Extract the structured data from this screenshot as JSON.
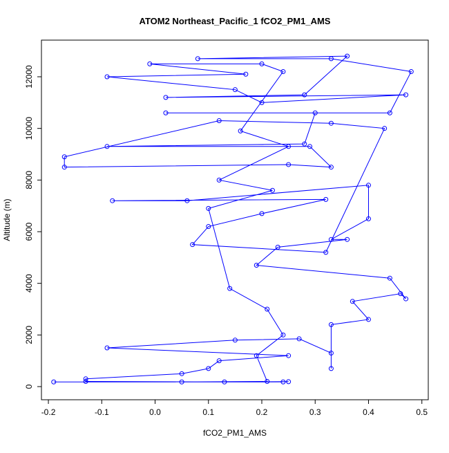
{
  "chart_data": {
    "type": "line",
    "title": "ATOM2 Northeast_Pacific_1 fCO2_PM1_AMS",
    "x_label": "fCO2_PM1_AMS",
    "y_label": "Altitude (m)",
    "series": [
      {
        "color": "#0000ff",
        "x": [
          -0.19,
          0.25,
          0.13,
          -0.13,
          -0.13,
          0.05,
          0.1,
          0.12,
          0.25,
          -0.09,
          0.15,
          0.27,
          0.33,
          0.33,
          0.33,
          0.4,
          0.37,
          0.46,
          0.47,
          0.44,
          0.19,
          0.23,
          0.36,
          0.33,
          0.4,
          0.4,
          0.06,
          -0.08,
          0.32,
          0.2,
          0.1,
          0.07,
          0.32,
          0.43,
          0.33,
          0.12,
          -0.17,
          -0.17,
          0.25,
          0.33,
          0.29,
          -0.09,
          0.28,
          0.3,
          0.02,
          0.44,
          0.48,
          0.33,
          0.08,
          0.36,
          0.28,
          0.02,
          0.47,
          0.2,
          0.15,
          -0.09,
          0.17,
          -0.01,
          0.2,
          0.24,
          0.16,
          0.25,
          0.12,
          0.22,
          0.1,
          0.14,
          0.21,
          0.24,
          0.19,
          0.21,
          0.05,
          0.24
        ],
        "values": [
          180,
          190,
          180,
          200,
          300,
          500,
          700,
          1000,
          1200,
          1500,
          1800,
          1850,
          1300,
          700,
          2400,
          2600,
          3300,
          3600,
          3400,
          4200,
          4700,
          5400,
          5700,
          5700,
          6500,
          7800,
          7200,
          7200,
          7250,
          6700,
          6200,
          5500,
          5200,
          10000,
          10200,
          10300,
          8900,
          8500,
          8600,
          8500,
          9300,
          9300,
          9400,
          10600,
          10600,
          10600,
          12200,
          12700,
          12700,
          12800,
          11300,
          11200,
          11300,
          11000,
          11500,
          12000,
          12100,
          12500,
          12500,
          12200,
          9900,
          9300,
          8000,
          7600,
          6900,
          3800,
          3000,
          2000,
          1200,
          200,
          180,
          180
        ]
      }
    ],
    "xlim": [
      -0.213,
      0.512
    ],
    "ylim": [
      -509,
      13420
    ],
    "xticks": [
      -0.2,
      -0.1,
      {
        "value": 0,
        "label": "0.0"
      },
      0.1,
      0.2,
      0.3,
      0.4,
      0.5
    ],
    "yticks": [
      0,
      2000,
      4000,
      6000,
      8000,
      10000,
      12000
    ]
  }
}
